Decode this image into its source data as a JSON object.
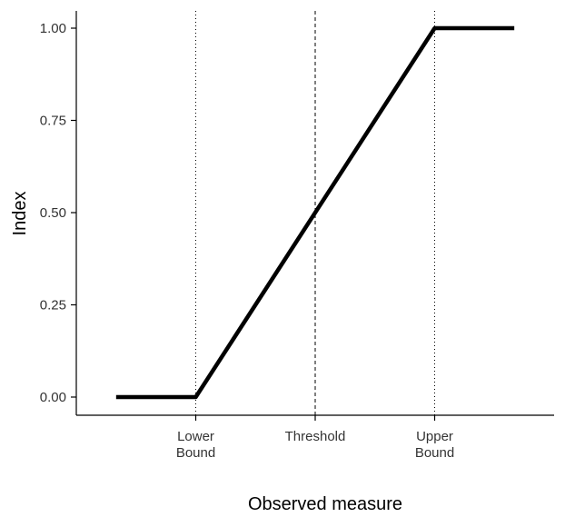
{
  "chart_data": {
    "type": "line",
    "title": "",
    "xlabel": "Observed measure",
    "ylabel": "Index",
    "grid": false,
    "xlim": [
      -1.2,
      1.2
    ],
    "ylim": [
      0,
      1
    ],
    "x_ticks": [
      {
        "value": -0.6,
        "lines": [
          "Lower",
          "Bound"
        ]
      },
      {
        "value": 0,
        "lines": [
          "Threshold"
        ]
      },
      {
        "value": 0.6,
        "lines": [
          "Upper",
          "Bound"
        ]
      }
    ],
    "y_ticks": [
      {
        "value": 0,
        "label": "0.00"
      },
      {
        "value": 0.25,
        "label": "0.25"
      },
      {
        "value": 0.5,
        "label": "0.50"
      },
      {
        "value": 0.75,
        "label": "0.75"
      },
      {
        "value": 1,
        "label": "1.00"
      }
    ],
    "reference_lines": [
      {
        "x": -0.6,
        "style": "dotted"
      },
      {
        "x": 0,
        "style": "dashed"
      },
      {
        "x": 0.6,
        "style": "dotted"
      }
    ],
    "series": [
      {
        "x": [
          -1.0,
          -0.6,
          0.6,
          1.0
        ],
        "y": [
          0,
          0,
          1,
          1
        ],
        "color": "#000000"
      }
    ]
  }
}
